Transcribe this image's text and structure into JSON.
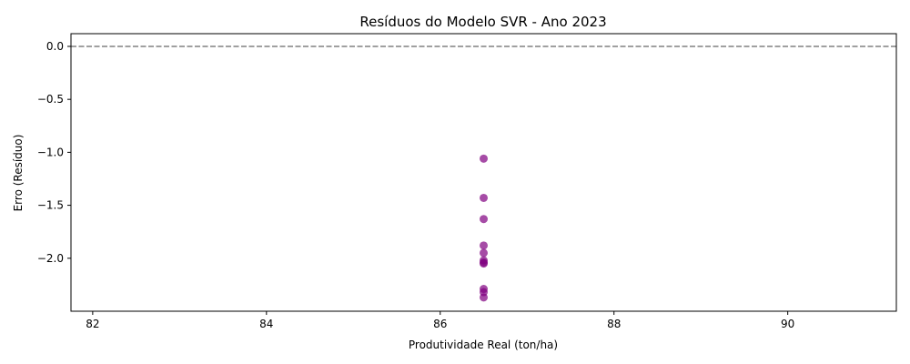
{
  "chart_data": {
    "type": "scatter",
    "title": "Resíduos do Modelo SVR - Ano 2023",
    "xlabel": "Produtividade Real (ton/ha)",
    "ylabel": "Erro (Resíduo)",
    "xlim": [
      81.75,
      91.25
    ],
    "ylim": [
      -2.5,
      0.12
    ],
    "xticks": [
      82,
      84,
      86,
      88,
      90
    ],
    "xtick_labels": [
      "82",
      "84",
      "86",
      "88",
      "90"
    ],
    "yticks": [
      0.0,
      -0.5,
      -1.0,
      -1.5,
      -2.0
    ],
    "ytick_labels": [
      "0.0",
      "−0.5",
      "−1.0",
      "−1.5",
      "−2.0"
    ],
    "grid": false,
    "reference_line": {
      "y": 0.0,
      "style": "dashed",
      "color": "#808080"
    },
    "point_color": "#800080",
    "points": [
      {
        "x": 86.5,
        "y": -1.06
      },
      {
        "x": 86.5,
        "y": -1.43
      },
      {
        "x": 86.5,
        "y": -1.63
      },
      {
        "x": 86.5,
        "y": -1.88
      },
      {
        "x": 86.5,
        "y": -1.95
      },
      {
        "x": 86.5,
        "y": -2.02
      },
      {
        "x": 86.5,
        "y": -2.04
      },
      {
        "x": 86.5,
        "y": -2.05
      },
      {
        "x": 86.5,
        "y": -2.29
      },
      {
        "x": 86.5,
        "y": -2.32
      },
      {
        "x": 86.5,
        "y": -2.37
      }
    ]
  }
}
